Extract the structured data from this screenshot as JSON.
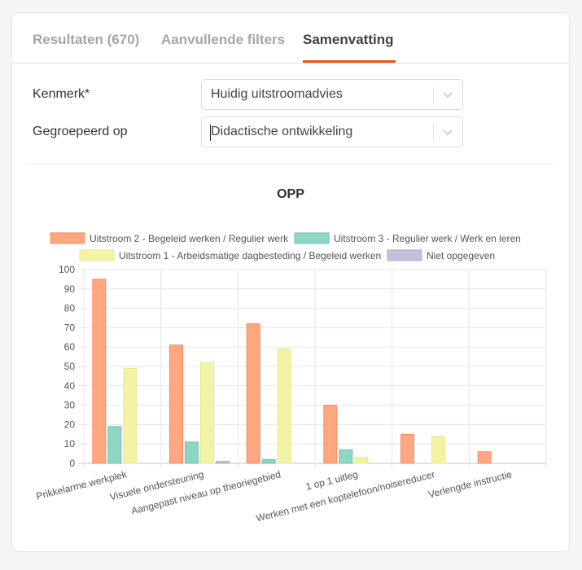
{
  "tabs": [
    {
      "label": "Resultaten (670)"
    },
    {
      "label": "Aanvullende filters"
    },
    {
      "label": "Samenvatting"
    }
  ],
  "form": {
    "kenmerk_label": "Kenmerk*",
    "kenmerk_value": "Huidig uitstroomadvies",
    "gegroepeerd_label": "Gegroepeerd op",
    "gegroepeerd_value": "Didactische ontwikkeling"
  },
  "icons": {
    "dropdown": "chevron-down-icon"
  },
  "chart_data": {
    "type": "bar",
    "title": "OPP",
    "categories": [
      "Prikkelarme werkplek",
      "Visuele ondersteuning",
      "Aangepast niveau op theoriegebied",
      "1 op 1 uitleg",
      "Werken met een koptelefoon/noisereducer",
      "Verlengde instructie"
    ],
    "series": [
      {
        "name": "Uitstroom 2 - Begeleid werken / Regulier werk",
        "color": "#ffa781",
        "border": "#ff8a5c",
        "values": [
          95,
          61,
          72,
          30,
          15,
          6
        ]
      },
      {
        "name": "Uitstroom 3 - Regulier werk / Werk en leren",
        "color": "#8ed6c4",
        "border": "#6cc4ae",
        "values": [
          19,
          11,
          2,
          7,
          0,
          0
        ]
      },
      {
        "name": "Uitstroom 1 - Arbeidsmatige dagbesteding / Begeleid werken",
        "color": "#f4f2a4",
        "border": "#ebe98a",
        "values": [
          49,
          52,
          59,
          3,
          14,
          0
        ]
      },
      {
        "name": "Niet opgegeven",
        "color": "#c4c0dd",
        "border": "#aca7cf",
        "values": [
          0,
          1,
          0,
          0,
          0,
          0
        ]
      }
    ],
    "ylim": [
      0,
      100
    ],
    "yticks": [
      0,
      10,
      20,
      30,
      40,
      50,
      60,
      70,
      80,
      90,
      100
    ],
    "legend_position": "top",
    "grid": true
  }
}
